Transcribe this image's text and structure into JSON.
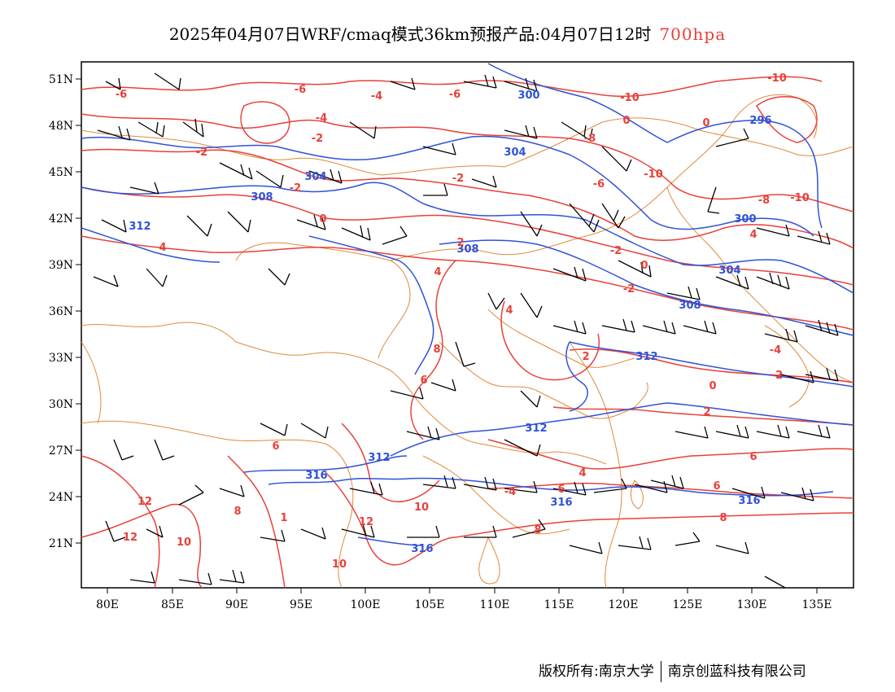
{
  "title": {
    "main": "2025年04月07日WRF/cmaq模式36km预报产品:04月07日12时",
    "level": "700hpa"
  },
  "axes": {
    "lat_labels": [
      "51N",
      "48N",
      "45N",
      "42N",
      "39N",
      "36N",
      "33N",
      "30N",
      "27N",
      "24N",
      "21N"
    ],
    "lon_labels": [
      "80E",
      "85E",
      "90E",
      "95E",
      "100E",
      "105E",
      "110E",
      "115E",
      "120E",
      "125E",
      "130E",
      "135E"
    ]
  },
  "contours": {
    "geopotential": {
      "color": "#2f52d8",
      "labels": [
        "300",
        "296",
        "304",
        "304",
        "308",
        "312",
        "300",
        "304",
        "308",
        "308",
        "312",
        "312",
        "312",
        "316",
        "316",
        "316",
        "316"
      ]
    },
    "temperature": {
      "color": "#e8403a",
      "labels": [
        "-6",
        "-6",
        "-6",
        "-4",
        "-4",
        "-2",
        "-10",
        "-10",
        "-8",
        "-8",
        "-10",
        "-10",
        "0",
        "0",
        "-2",
        "-2",
        "0",
        "-2",
        "2",
        "4",
        "-4",
        "-2",
        "-2",
        "0",
        "2",
        "4",
        "8",
        "6",
        "4",
        "6",
        "4",
        "8",
        "12",
        "12",
        "10",
        "12",
        "10",
        "1",
        "8",
        "8",
        "10",
        "6",
        "6",
        "6",
        "2",
        "-4",
        "-2",
        "-6",
        "0",
        "4"
      ]
    }
  },
  "footer": {
    "left": "版权所有:南京大学",
    "right": "南京创蓝科技有限公司"
  }
}
